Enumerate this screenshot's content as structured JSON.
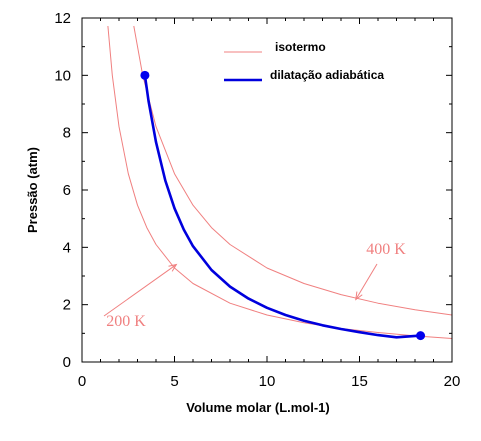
{
  "chart_data": {
    "type": "line",
    "xlabel": "Volume molar (L.mol-1)",
    "ylabel": "Pressão (atm)",
    "xlim": [
      0,
      20
    ],
    "ylim": [
      0,
      12
    ],
    "x_ticks": [
      "0",
      "5",
      "10",
      "15",
      "20"
    ],
    "y_ticks": [
      "0",
      "2",
      "4",
      "6",
      "8",
      "10",
      "12"
    ],
    "grid": false,
    "legend_position": "top-right",
    "series": [
      {
        "name": "isotermo",
        "color": "#f08080",
        "x": [
          1.4,
          1.64,
          2.0,
          2.5,
          3.0,
          3.5,
          4.0,
          5.0,
          6.0,
          8.0,
          10.0,
          12.0,
          14.0,
          16.0,
          18.0,
          20.0
        ],
        "y": [
          11.72,
          10.0,
          8.21,
          6.57,
          5.47,
          4.69,
          4.1,
          3.28,
          2.74,
          2.05,
          1.64,
          1.37,
          1.17,
          1.03,
          0.91,
          0.82
        ]
      },
      {
        "name": "isotermo",
        "color": "#f08080",
        "x": [
          2.8,
          3.28,
          4.0,
          5.0,
          6.0,
          7.0,
          8.0,
          10.0,
          12.0,
          14.0,
          16.0,
          18.0,
          20.0
        ],
        "y": [
          11.72,
          10.0,
          8.21,
          6.57,
          5.47,
          4.69,
          4.1,
          3.28,
          2.74,
          2.35,
          2.05,
          1.82,
          1.64
        ]
      },
      {
        "name": "dilatação adiabática",
        "color": "#0000dd",
        "x": [
          3.4,
          3.6,
          4.0,
          4.5,
          5.0,
          5.5,
          6.0,
          7.0,
          8.0,
          9.0,
          10.0,
          11.0,
          12.0,
          13.0,
          14.0,
          15.0,
          16.0,
          17.0,
          18.3
        ],
        "y": [
          10.0,
          9.09,
          7.67,
          6.33,
          5.36,
          4.62,
          4.04,
          3.21,
          2.63,
          2.21,
          1.89,
          1.64,
          1.44,
          1.28,
          1.15,
          1.04,
          0.94,
          0.86,
          0.92
        ]
      }
    ],
    "endpoints": [
      {
        "x": 3.4,
        "y": 10.0
      },
      {
        "x": 18.3,
        "y": 0.92
      }
    ],
    "legend": [
      {
        "label": "isotermo",
        "color": "#f08080"
      },
      {
        "label": "dilatação adiabática",
        "color": "#0000dd"
      }
    ],
    "annotations": [
      {
        "text": "400 K",
        "color": "#f08080",
        "arrow_to": {
          "x": 14.8,
          "y": 2.18
        }
      },
      {
        "text": "200 K",
        "color": "#f08080",
        "arrow_to": {
          "x": 5.1,
          "y": 3.4
        }
      }
    ]
  }
}
